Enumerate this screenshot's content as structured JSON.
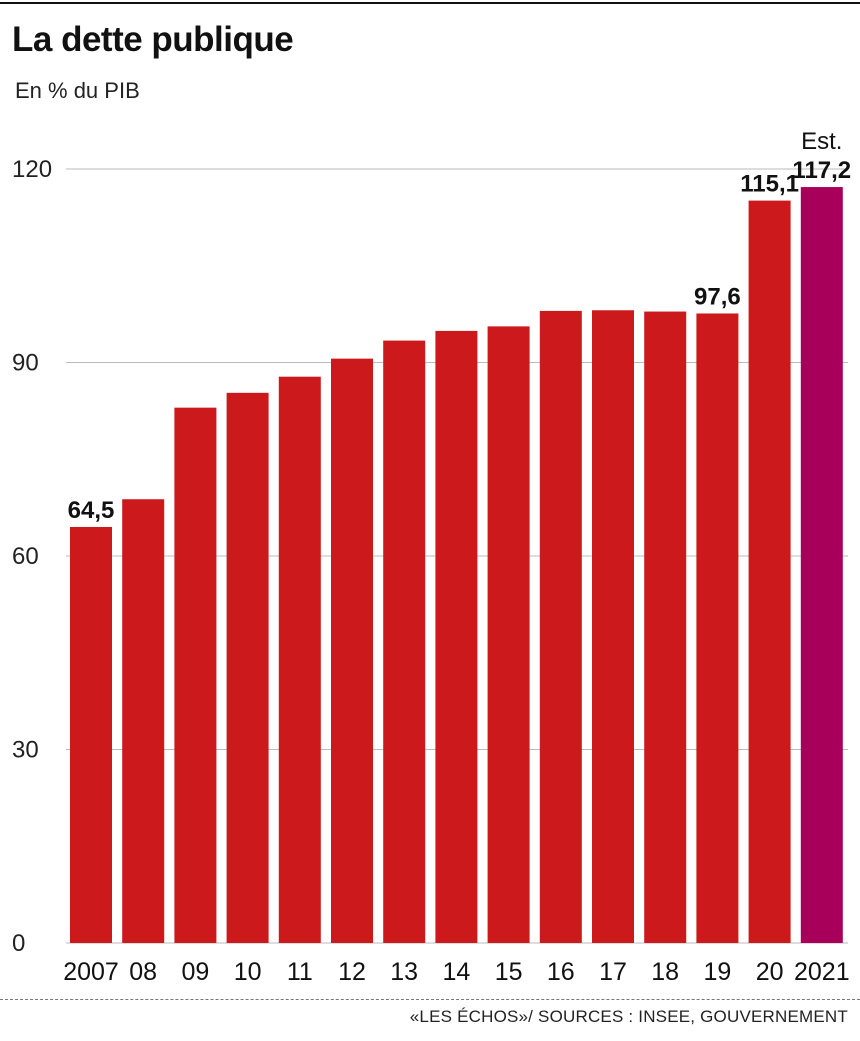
{
  "header": {
    "title": "La dette publique",
    "subtitle": "En % du PIB"
  },
  "footer": {
    "source": "«LES ÉCHOS»/ SOURCES : INSEE, GOUVERNEMENT"
  },
  "colors": {
    "bar": "#cc1a1c",
    "highlight": "#a8005a",
    "grid": "#bbbbbb"
  },
  "chart_data": {
    "type": "bar",
    "title": "La dette publique",
    "subtitle": "En % du PIB",
    "categories": [
      "2007",
      "08",
      "09",
      "10",
      "11",
      "12",
      "13",
      "14",
      "15",
      "16",
      "17",
      "18",
      "19",
      "20",
      "2021"
    ],
    "values": [
      64.5,
      68.8,
      83.0,
      85.3,
      87.8,
      90.6,
      93.4,
      94.9,
      95.6,
      98.0,
      98.1,
      97.9,
      97.6,
      115.1,
      117.2
    ],
    "labels": [
      "64,5",
      "",
      "",
      "",
      "",
      "",
      "",
      "",
      "",
      "",
      "",
      "",
      "97,6",
      "115,1",
      "117,2"
    ],
    "highlight_index": 14,
    "annotation": "Est.",
    "yticks": [
      0,
      30,
      60,
      90,
      120
    ],
    "ylim": [
      0,
      120
    ],
    "grid": true,
    "xlabel": "",
    "ylabel": ""
  }
}
